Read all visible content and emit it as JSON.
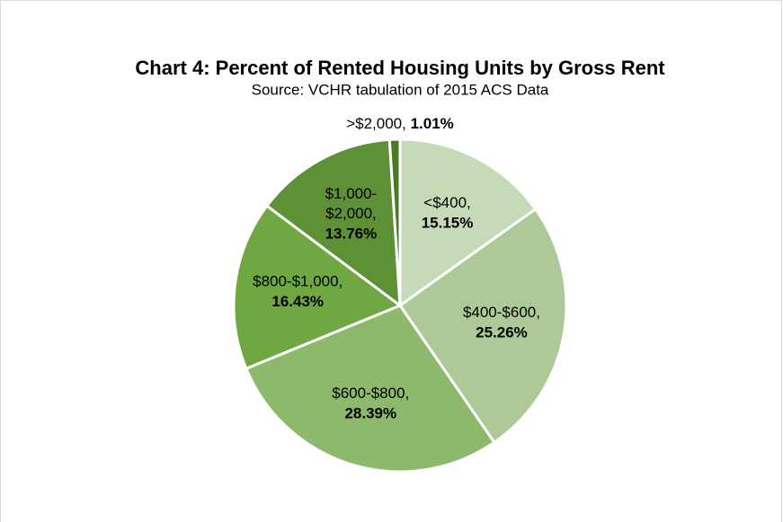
{
  "chart_data": {
    "type": "pie",
    "title": "Chart 4: Percent of Rented Housing Units by Gross Rent",
    "subtitle": "Source: VCHR tabulation of 2015 ACS Data",
    "categories": [
      "<$400,",
      "$400-$600,",
      "$600-$800,",
      "$800-$1,000,",
      "$1,000-$2,000,",
      ">$2,000,"
    ],
    "values": [
      15.15,
      25.26,
      28.39,
      16.43,
      13.76,
      1.01
    ],
    "value_labels": [
      "15.15%",
      "25.26%",
      "28.39%",
      "16.43%",
      "13.76%",
      "1.01%"
    ],
    "colors": [
      "#c7dab8",
      "#adc998",
      "#8cb96c",
      "#6fa843",
      "#5e9036",
      "#4a7a28"
    ]
  }
}
